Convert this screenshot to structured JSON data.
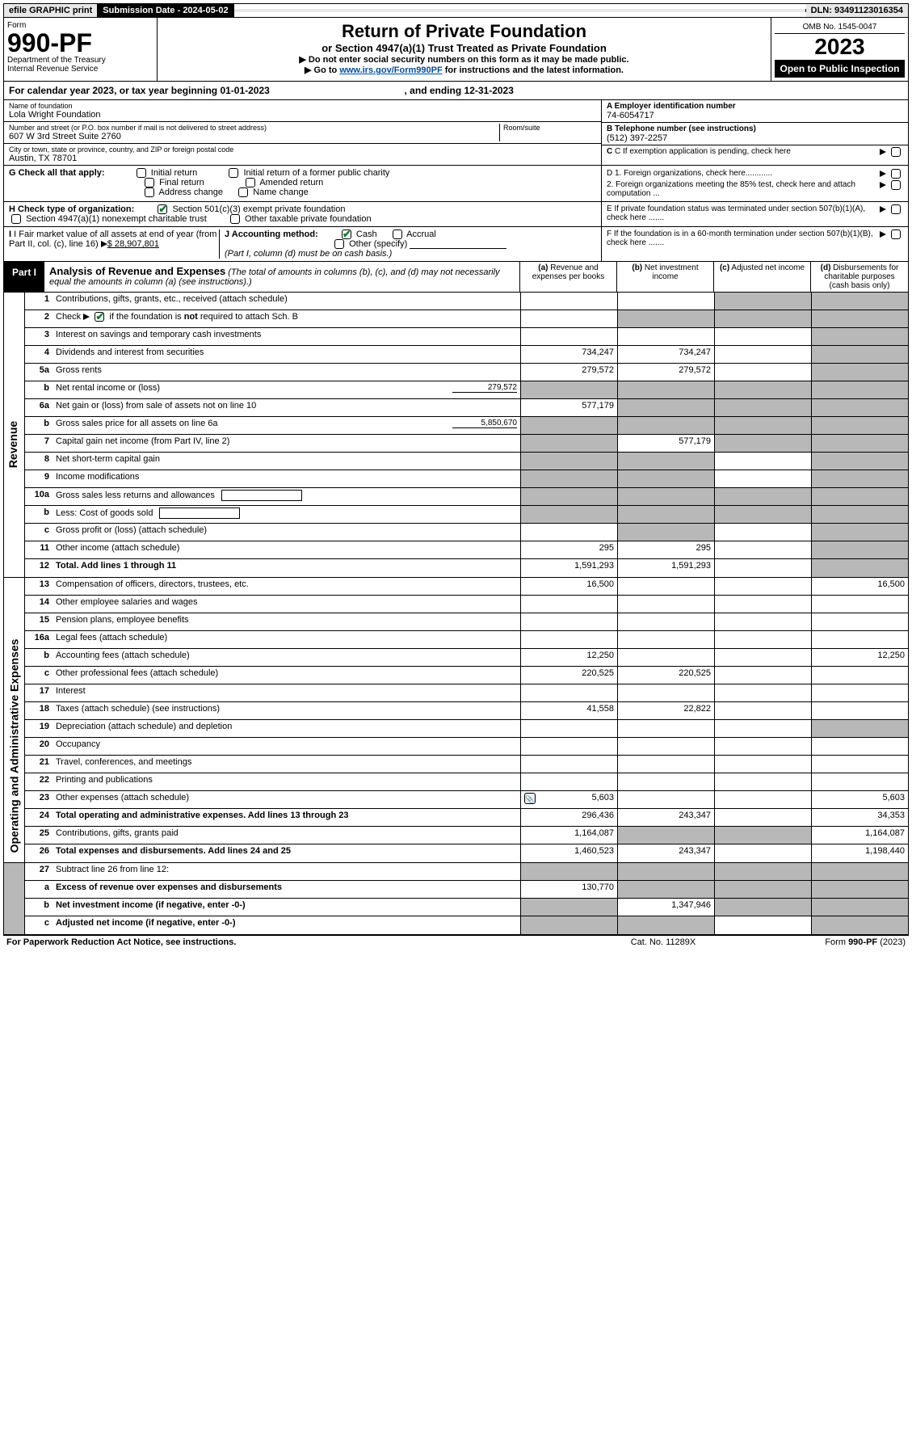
{
  "header": {
    "efile": "efile GRAPHIC print",
    "submLabel": "Submission Date - 2024-05-02",
    "dln": "DLN: 93491123016354"
  },
  "formHeader": {
    "formWord": "Form",
    "formNum": "990-PF",
    "dept1": "Department of the Treasury",
    "dept2": "Internal Revenue Service",
    "title": "Return of Private Foundation",
    "subtitle": "or Section 4947(a)(1) Trust Treated as Private Foundation",
    "note1": "▶ Do not enter social security numbers on this form as it may be made public.",
    "note2pre": "▶ Go to ",
    "note2link": "www.irs.gov/Form990PF",
    "note2post": " for instructions and the latest information.",
    "omb": "OMB No. 1545-0047",
    "year": "2023",
    "open": "Open to Public Inspection"
  },
  "yearLine": {
    "pre": "For calendar year 2023, or tax year beginning 01-01-2023",
    "mid": ", and ending 12-31-2023"
  },
  "info": {
    "nameLabel": "Name of foundation",
    "name": "Lola Wright Foundation",
    "addrLabel": "Number and street (or P.O. box number if mail is not delivered to street address)",
    "addr": "607 W 3rd Street Suite 2760",
    "roomLabel": "Room/suite",
    "cityLabel": "City or town, state or province, country, and ZIP or foreign postal code",
    "city": "Austin, TX  78701",
    "aLabel": "A Employer identification number",
    "ein": "74-6054717",
    "bLabel": "B Telephone number (see instructions)",
    "phone": "(512) 397-2257",
    "cLabel": "C If exemption application is pending, check here",
    "d1": "D 1. Foreign organizations, check here............",
    "d2": "2. Foreign organizations meeting the 85% test, check here and attach computation ...",
    "eLabel": "E  If private foundation status was terminated under section 507(b)(1)(A), check here .......",
    "fLabel": "F  If the foundation is in a 60-month termination under section 507(b)(1)(B), check here .......",
    "gLabel": "G Check all that apply:",
    "g1": "Initial return",
    "g2": "Initial return of a former public charity",
    "g3": "Final return",
    "g4": "Amended return",
    "g5": "Address change",
    "g6": "Name change",
    "hLabel": "H Check type of organization:",
    "h1": "Section 501(c)(3) exempt private foundation",
    "h2": "Section 4947(a)(1) nonexempt charitable trust",
    "h3": "Other taxable private foundation",
    "iLabel": "I Fair market value of all assets at end of year (from Part II, col. (c), line 16)",
    "iVal": "$  28,907,801",
    "jLabel": "J Accounting method:",
    "j1": "Cash",
    "j2": "Accrual",
    "j3": "Other (specify)",
    "jNote": "(Part I, column (d) must be on cash basis.)"
  },
  "part1": {
    "label": "Part I",
    "title": "Analysis of Revenue and Expenses",
    "titleNote": "(The total of amounts in columns (b), (c), and (d) may not necessarily equal the amounts in column (a) (see instructions).)",
    "colA": "(a) Revenue and expenses per books",
    "colB": "(b) Net investment income",
    "colC": "(c) Adjusted net income",
    "colD": "(d) Disbursements for charitable purposes (cash basis only)"
  },
  "rows": [
    {
      "n": "1",
      "d": "Contributions, gifts, grants, etc., received (attach schedule)",
      "a": "",
      "b": "",
      "c": "grey",
      "dd": "grey"
    },
    {
      "n": "2",
      "d": "Check ▶ [✔] if the foundation is not required to attach Sch. B",
      "a": "",
      "b": "grey",
      "c": "grey",
      "dd": "grey",
      "hasCheck": true
    },
    {
      "n": "3",
      "d": "Interest on savings and temporary cash investments",
      "a": "",
      "b": "",
      "c": "",
      "dd": "grey"
    },
    {
      "n": "4",
      "d": "Dividends and interest from securities",
      "a": "734,247",
      "b": "734,247",
      "c": "",
      "dd": "grey"
    },
    {
      "n": "5a",
      "d": "Gross rents",
      "a": "279,572",
      "b": "279,572",
      "c": "",
      "dd": "grey"
    },
    {
      "n": "b",
      "d": "Net rental income or (loss)",
      "inline": "279,572",
      "a": "grey",
      "b": "grey",
      "c": "grey",
      "dd": "grey"
    },
    {
      "n": "6a",
      "d": "Net gain or (loss) from sale of assets not on line 10",
      "a": "577,179",
      "b": "grey",
      "c": "grey",
      "dd": "grey"
    },
    {
      "n": "b",
      "d": "Gross sales price for all assets on line 6a",
      "inlineLine": "5,850,670",
      "a": "grey",
      "b": "grey",
      "c": "grey",
      "dd": "grey"
    },
    {
      "n": "7",
      "d": "Capital gain net income (from Part IV, line 2)",
      "a": "grey",
      "b": "577,179",
      "c": "grey",
      "dd": "grey"
    },
    {
      "n": "8",
      "d": "Net short-term capital gain",
      "a": "grey",
      "b": "grey",
      "c": "",
      "dd": "grey"
    },
    {
      "n": "9",
      "d": "Income modifications",
      "a": "grey",
      "b": "grey",
      "c": "",
      "dd": "grey"
    },
    {
      "n": "10a",
      "d": "Gross sales less returns and allowances",
      "box": true,
      "a": "grey",
      "b": "grey",
      "c": "grey",
      "dd": "grey"
    },
    {
      "n": "b",
      "d": "Less: Cost of goods sold",
      "box": true,
      "a": "grey",
      "b": "grey",
      "c": "grey",
      "dd": "grey"
    },
    {
      "n": "c",
      "d": "Gross profit or (loss) (attach schedule)",
      "a": "",
      "b": "grey",
      "c": "",
      "dd": "grey"
    },
    {
      "n": "11",
      "d": "Other income (attach schedule)",
      "a": "295",
      "b": "295",
      "c": "",
      "dd": "grey"
    },
    {
      "n": "12",
      "d": "Total. Add lines 1 through 11",
      "bold": true,
      "a": "1,591,293",
      "b": "1,591,293",
      "c": "",
      "dd": "grey"
    }
  ],
  "expRows": [
    {
      "n": "13",
      "d": "Compensation of officers, directors, trustees, etc.",
      "a": "16,500",
      "b": "",
      "c": "",
      "dd": "16,500"
    },
    {
      "n": "14",
      "d": "Other employee salaries and wages",
      "a": "",
      "b": "",
      "c": "",
      "dd": ""
    },
    {
      "n": "15",
      "d": "Pension plans, employee benefits",
      "a": "",
      "b": "",
      "c": "",
      "dd": ""
    },
    {
      "n": "16a",
      "d": "Legal fees (attach schedule)",
      "a": "",
      "b": "",
      "c": "",
      "dd": ""
    },
    {
      "n": "b",
      "d": "Accounting fees (attach schedule)",
      "a": "12,250",
      "b": "",
      "c": "",
      "dd": "12,250"
    },
    {
      "n": "c",
      "d": "Other professional fees (attach schedule)",
      "a": "220,525",
      "b": "220,525",
      "c": "",
      "dd": ""
    },
    {
      "n": "17",
      "d": "Interest",
      "a": "",
      "b": "",
      "c": "",
      "dd": ""
    },
    {
      "n": "18",
      "d": "Taxes (attach schedule) (see instructions)",
      "a": "41,558",
      "b": "22,822",
      "c": "",
      "dd": ""
    },
    {
      "n": "19",
      "d": "Depreciation (attach schedule) and depletion",
      "a": "",
      "b": "",
      "c": "",
      "dd": "grey"
    },
    {
      "n": "20",
      "d": "Occupancy",
      "a": "",
      "b": "",
      "c": "",
      "dd": ""
    },
    {
      "n": "21",
      "d": "Travel, conferences, and meetings",
      "a": "",
      "b": "",
      "c": "",
      "dd": ""
    },
    {
      "n": "22",
      "d": "Printing and publications",
      "a": "",
      "b": "",
      "c": "",
      "dd": ""
    },
    {
      "n": "23",
      "d": "Other expenses (attach schedule)",
      "a": "5,603",
      "b": "",
      "c": "",
      "dd": "5,603",
      "attach": true
    },
    {
      "n": "24",
      "d": "Total operating and administrative expenses. Add lines 13 through 23",
      "bold": true,
      "a": "296,436",
      "b": "243,347",
      "c": "",
      "dd": "34,353"
    },
    {
      "n": "25",
      "d": "Contributions, gifts, grants paid",
      "a": "1,164,087",
      "b": "grey",
      "c": "grey",
      "dd": "1,164,087"
    },
    {
      "n": "26",
      "d": "Total expenses and disbursements. Add lines 24 and 25",
      "bold": true,
      "a": "1,460,523",
      "b": "243,347",
      "c": "",
      "dd": "1,198,440"
    }
  ],
  "bottomRows": [
    {
      "n": "27",
      "d": "Subtract line 26 from line 12:",
      "a": "grey",
      "b": "grey",
      "c": "grey",
      "dd": "grey"
    },
    {
      "n": "a",
      "d": "Excess of revenue over expenses and disbursements",
      "bold": true,
      "a": "130,770",
      "b": "grey",
      "c": "grey",
      "dd": "grey"
    },
    {
      "n": "b",
      "d": "Net investment income (if negative, enter -0-)",
      "bold": true,
      "a": "grey",
      "b": "1,347,946",
      "c": "grey",
      "dd": "grey"
    },
    {
      "n": "c",
      "d": "Adjusted net income (if negative, enter -0-)",
      "bold": true,
      "a": "grey",
      "b": "grey",
      "c": "",
      "dd": "grey"
    }
  ],
  "sideLabels": {
    "revenue": "Revenue",
    "expenses": "Operating and Administrative Expenses"
  },
  "footer": {
    "left": "For Paperwork Reduction Act Notice, see instructions.",
    "center": "Cat. No. 11289X",
    "right": "Form 990-PF (2023)"
  }
}
